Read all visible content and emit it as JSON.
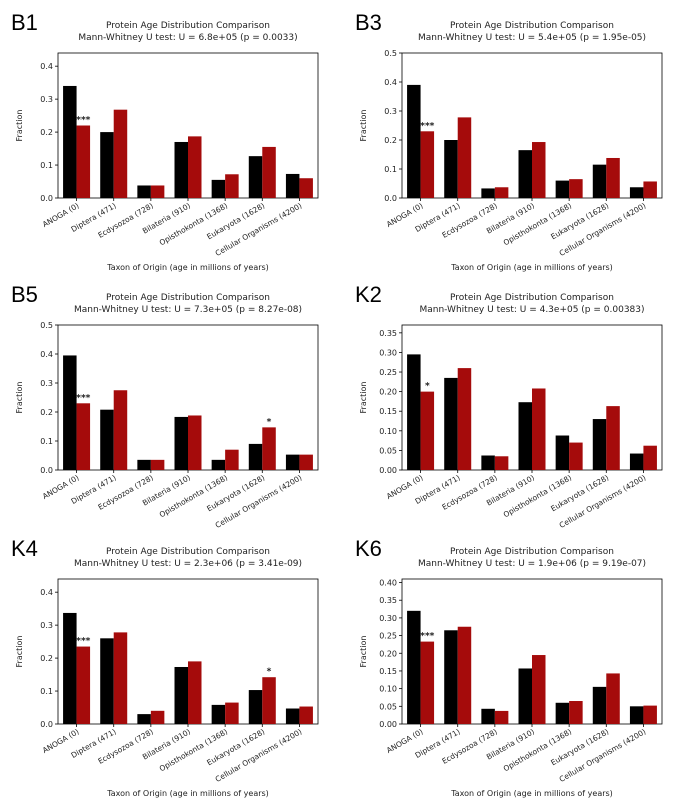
{
  "figure": {
    "series_colors": [
      "#000000",
      "#a50b0b"
    ]
  },
  "chart_data": [
    {
      "id": "B1",
      "type": "bar",
      "title": "Protein Age Distribution Comparison",
      "subtitle": "Mann-Whitney U test: U = 6.8e+05 (p = 0.0033)",
      "xlabel": "Taxon of Origin (age in millions of years)",
      "ylabel": "Fraction",
      "ylim": [
        0,
        0.44
      ],
      "yticks": [
        "0.0",
        "0.1",
        "0.2",
        "0.3",
        "0.4"
      ],
      "categories": [
        "ANOGA (0)",
        "Diptera (471)",
        "Ecdysozoa (728)",
        "Bilateria (910)",
        "Opisthokonta (1368)",
        "Eukaryota (1628)",
        "Cellular Organisms (4200)"
      ],
      "series": [
        {
          "name": "black",
          "values": [
            0.34,
            0.2,
            0.038,
            0.17,
            0.055,
            0.127,
            0.073
          ]
        },
        {
          "name": "red",
          "values": [
            0.22,
            0.268,
            0.038,
            0.187,
            0.072,
            0.155,
            0.06
          ]
        }
      ],
      "annotations": [
        {
          "category_index": 0,
          "series": 1,
          "text": "***"
        }
      ]
    },
    {
      "id": "B3",
      "type": "bar",
      "title": "Protein Age Distribution Comparison",
      "subtitle": "Mann-Whitney U test: U = 5.4e+05 (p = 1.95e-05)",
      "xlabel": "Taxon of Origin (age in millions of years)",
      "ylabel": "Fraction",
      "ylim": [
        0,
        0.5
      ],
      "yticks": [
        "0.0",
        "0.1",
        "0.2",
        "0.3",
        "0.4",
        "0.5"
      ],
      "categories": [
        "ANOGA (0)",
        "Diptera (471)",
        "Ecdysozoa (728)",
        "Bilateria (910)",
        "Opisthokonta (1368)",
        "Eukaryota (1628)",
        "Cellular Organisms (4200)"
      ],
      "series": [
        {
          "name": "black",
          "values": [
            0.39,
            0.2,
            0.033,
            0.165,
            0.06,
            0.115,
            0.037
          ]
        },
        {
          "name": "red",
          "values": [
            0.23,
            0.278,
            0.037,
            0.193,
            0.065,
            0.138,
            0.057
          ]
        }
      ],
      "annotations": [
        {
          "category_index": 0,
          "series": 1,
          "text": "***"
        }
      ]
    },
    {
      "id": "B5",
      "type": "bar",
      "title": "Protein Age Distribution Comparison",
      "subtitle": "Mann-Whitney U test: U = 7.3e+05 (p = 8.27e-08)",
      "xlabel": "",
      "ylabel": "Fraction",
      "ylim": [
        0,
        0.5
      ],
      "yticks": [
        "0.0",
        "0.1",
        "0.2",
        "0.3",
        "0.4",
        "0.5"
      ],
      "categories": [
        "ANOGA (0)",
        "Diptera (471)",
        "Ecdysozoa (728)",
        "Bilateria (910)",
        "Opisthokonta (1368)",
        "Eukaryota (1628)",
        "Cellular Organisms (4200)"
      ],
      "series": [
        {
          "name": "black",
          "values": [
            0.395,
            0.208,
            0.035,
            0.183,
            0.035,
            0.09,
            0.053
          ]
        },
        {
          "name": "red",
          "values": [
            0.23,
            0.275,
            0.035,
            0.188,
            0.07,
            0.147,
            0.053
          ]
        }
      ],
      "annotations": [
        {
          "category_index": 0,
          "series": 1,
          "text": "***"
        },
        {
          "category_index": 5,
          "series": 1,
          "text": "*"
        }
      ]
    },
    {
      "id": "K2",
      "type": "bar",
      "title": "Protein Age Distribution Comparison",
      "subtitle": "Mann-Whitney U test: U = 4.3e+05 (p = 0.00383)",
      "xlabel": "",
      "ylabel": "Fraction",
      "ylim": [
        0,
        0.37
      ],
      "yticks": [
        "0.00",
        "0.05",
        "0.10",
        "0.15",
        "0.20",
        "0.25",
        "0.30",
        "0.35"
      ],
      "categories": [
        "ANOGA (0)",
        "Diptera (471)",
        "Ecdysozoa (728)",
        "Bilateria (910)",
        "Opisthokonta (1368)",
        "Eukaryota (1628)",
        "Cellular Organisms (4200)"
      ],
      "series": [
        {
          "name": "black",
          "values": [
            0.295,
            0.235,
            0.037,
            0.173,
            0.088,
            0.13,
            0.042
          ]
        },
        {
          "name": "red",
          "values": [
            0.2,
            0.26,
            0.035,
            0.208,
            0.07,
            0.163,
            0.062
          ]
        }
      ],
      "annotations": [
        {
          "category_index": 0,
          "series": 1,
          "text": "*"
        }
      ]
    },
    {
      "id": "K4",
      "type": "bar",
      "title": "Protein Age Distribution Comparison",
      "subtitle": "Mann-Whitney U test: U = 2.3e+06 (p = 3.41e-09)",
      "xlabel": "Taxon of Origin (age in millions of years)",
      "ylabel": "Fraction",
      "ylim": [
        0,
        0.44
      ],
      "yticks": [
        "0.0",
        "0.1",
        "0.2",
        "0.3",
        "0.4"
      ],
      "categories": [
        "ANOGA (0)",
        "Diptera (471)",
        "Ecdysozoa (728)",
        "Bilateria (910)",
        "Opisthokonta (1368)",
        "Eukaryota (1628)",
        "Cellular Organisms (4200)"
      ],
      "series": [
        {
          "name": "black",
          "values": [
            0.337,
            0.26,
            0.03,
            0.173,
            0.058,
            0.103,
            0.047
          ]
        },
        {
          "name": "red",
          "values": [
            0.235,
            0.278,
            0.04,
            0.19,
            0.065,
            0.142,
            0.053
          ]
        }
      ],
      "annotations": [
        {
          "category_index": 0,
          "series": 1,
          "text": "***"
        },
        {
          "category_index": 5,
          "series": 1,
          "text": "*"
        }
      ]
    },
    {
      "id": "K6",
      "type": "bar",
      "title": "Protein Age Distribution Comparison",
      "subtitle": "Mann-Whitney U test: U = 1.9e+06 (p = 9.19e-07)",
      "xlabel": "Taxon of Origin (age in millions of years)",
      "ylabel": "Fraction",
      "ylim": [
        0,
        0.41
      ],
      "yticks": [
        "0.00",
        "0.05",
        "0.10",
        "0.15",
        "0.20",
        "0.25",
        "0.30",
        "0.35",
        "0.40"
      ],
      "categories": [
        "ANOGA (0)",
        "Diptera (471)",
        "Ecdysozoa (728)",
        "Bilateria (910)",
        "Opisthokonta (1368)",
        "Eukaryota (1628)",
        "Cellular Organisms (4200)"
      ],
      "series": [
        {
          "name": "black",
          "values": [
            0.32,
            0.265,
            0.043,
            0.157,
            0.06,
            0.105,
            0.05
          ]
        },
        {
          "name": "red",
          "values": [
            0.233,
            0.275,
            0.037,
            0.195,
            0.065,
            0.143,
            0.052
          ]
        }
      ],
      "annotations": [
        {
          "category_index": 0,
          "series": 1,
          "text": "***"
        }
      ]
    }
  ]
}
